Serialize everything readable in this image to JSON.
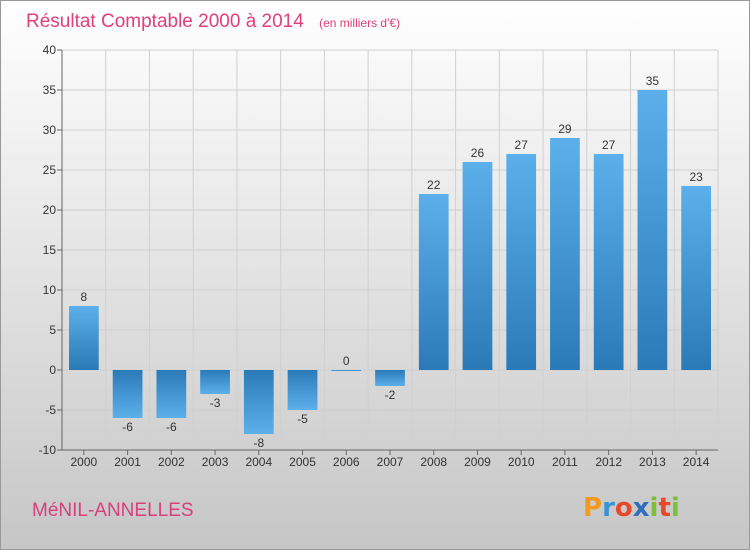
{
  "chart_data": {
    "type": "bar",
    "title": "Résultat Comptable 2000 à 2014",
    "subtitle": "(en milliers d'€)",
    "categories": [
      "2000",
      "2001",
      "2002",
      "2003",
      "2004",
      "2005",
      "2006",
      "2007",
      "2008",
      "2009",
      "2010",
      "2011",
      "2012",
      "2013",
      "2014"
    ],
    "values": [
      8,
      -6,
      -6,
      -3,
      -8,
      -5,
      0,
      -2,
      22,
      26,
      27,
      29,
      27,
      35,
      23
    ],
    "ylim": [
      -10,
      40
    ],
    "yticks": [
      -10,
      -5,
      0,
      5,
      10,
      15,
      20,
      25,
      30,
      35,
      40
    ],
    "grid": true,
    "bar_color": "#3a92d6"
  },
  "footer": {
    "place_name": "MéNIL-ANNELLES",
    "logo_text": "Proxiti"
  },
  "colors": {
    "title": "#e0407a",
    "place_name": "#d8407a",
    "background_top": "#ffffff",
    "background_bottom": "#c6c6c6"
  }
}
